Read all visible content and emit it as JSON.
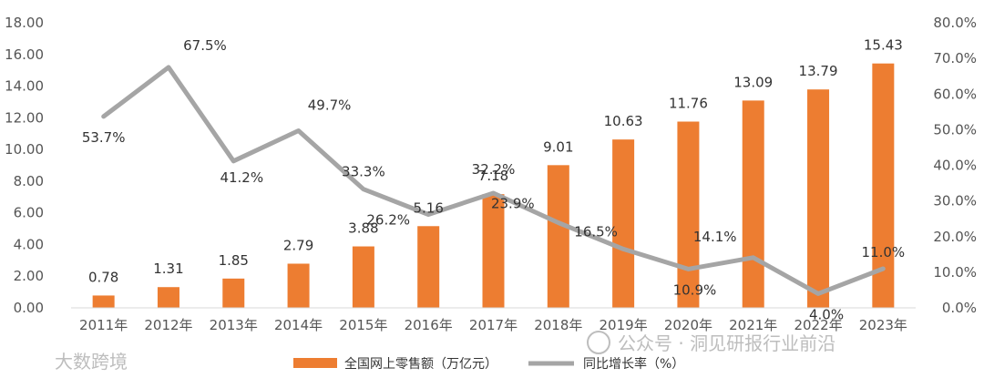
{
  "chart_data": {
    "type": "bar+line",
    "categories": [
      "2011年",
      "2012年",
      "2013年",
      "2014年",
      "2015年",
      "2016年",
      "2017年",
      "2018年",
      "2019年",
      "2020年",
      "2021年",
      "2022年",
      "2023年"
    ],
    "series": [
      {
        "name": "全国网上零售额（万亿元）",
        "type": "bar",
        "axis": "left",
        "values": [
          0.78,
          1.31,
          1.85,
          2.79,
          3.88,
          5.16,
          7.18,
          9.01,
          10.63,
          11.76,
          13.09,
          13.79,
          15.43
        ],
        "labels": [
          "0.78",
          "1.31",
          "1.85",
          "2.79",
          "3.88",
          "5.16",
          "7.18",
          "9.01",
          "10.63",
          "11.76",
          "13.09",
          "13.79",
          "15.43"
        ]
      },
      {
        "name": "同比增长率（%）",
        "type": "line",
        "axis": "right",
        "values": [
          53.7,
          67.5,
          41.2,
          49.7,
          33.3,
          26.2,
          32.2,
          23.9,
          16.5,
          10.9,
          14.1,
          4.0,
          11.0
        ],
        "labels": [
          "53.7%",
          "67.5%",
          "41.2%",
          "49.7%",
          "33.3%",
          "26.2%",
          "32.2%",
          "23.9%",
          "16.5%",
          "10.9%",
          "14.1%",
          "4.0%",
          "11.0%"
        ]
      }
    ],
    "y_left": {
      "min": 0,
      "max": 18,
      "ticks": [
        "0.00",
        "2.00",
        "4.00",
        "6.00",
        "8.00",
        "10.00",
        "12.00",
        "14.00",
        "16.00",
        "18.00"
      ]
    },
    "y_right": {
      "min": 0,
      "max": 80,
      "ticks": [
        "0.0%",
        "10.0%",
        "20.0%",
        "30.0%",
        "40.0%",
        "50.0%",
        "60.0%",
        "70.0%",
        "80.0%"
      ]
    },
    "grid": false,
    "legend": "bottom-center",
    "colors": {
      "bar": "#ED7D31",
      "line": "#A5A5A5"
    }
  },
  "watermarks": {
    "left": "大数跨境",
    "right": "公众号 · 洞见研报行业前沿"
  }
}
